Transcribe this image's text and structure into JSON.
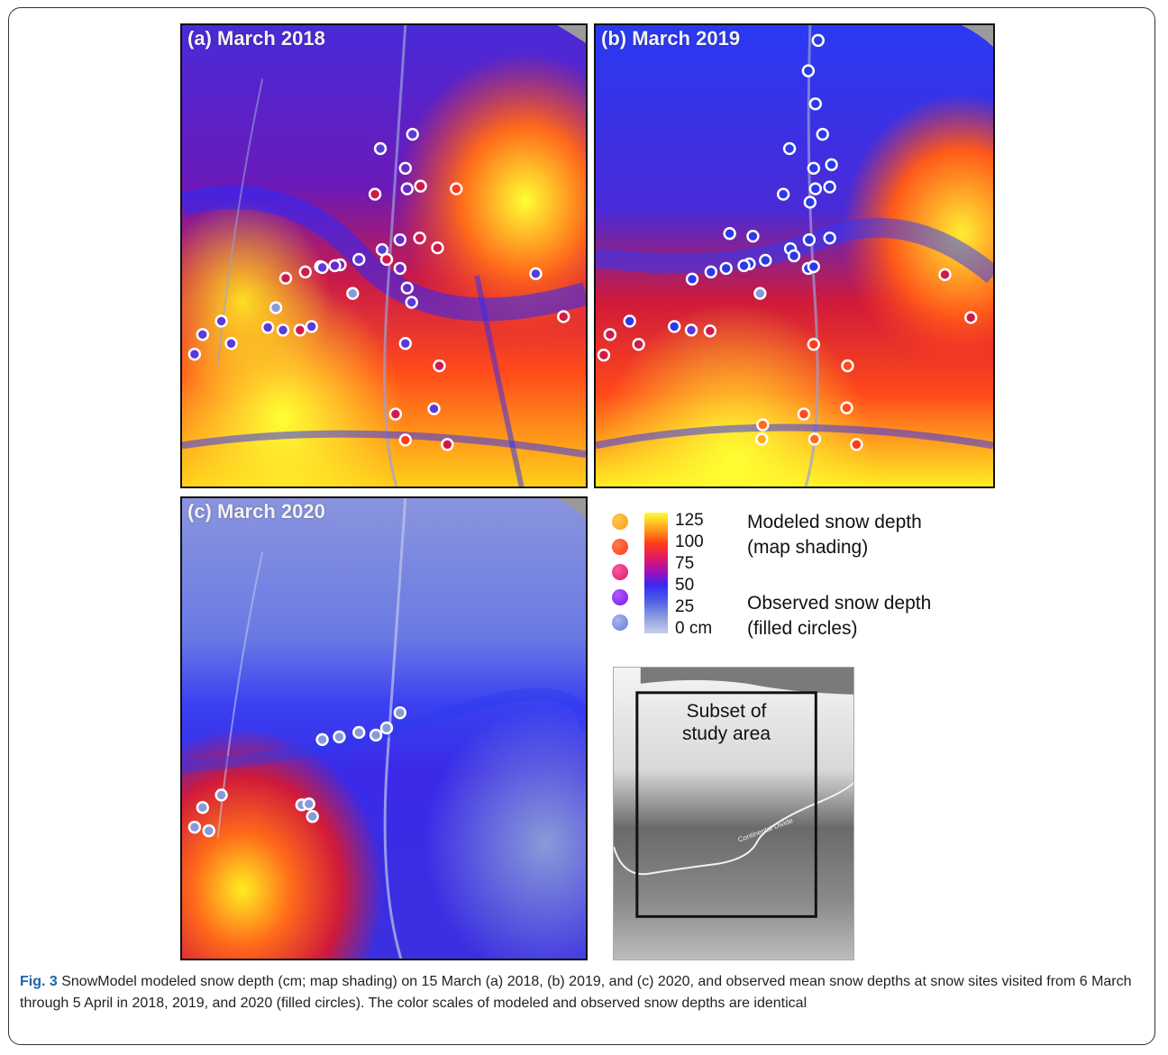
{
  "panels": {
    "a": {
      "label": "(a) March 2018"
    },
    "b": {
      "label": "(b) March 2019"
    },
    "c": {
      "label": "(c) March 2020"
    }
  },
  "legend": {
    "ticks": [
      "125",
      "100",
      "75",
      "50",
      "25",
      "0 cm"
    ],
    "modeled_title_1": "Modeled snow depth",
    "modeled_title_2": "(map shading)",
    "observed_title_1": "Observed snow depth",
    "observed_title_2": "(filled circles)",
    "dot_colors": [
      "#ff9a1a",
      "#ff4a1a",
      "#e01a7a",
      "#8a18e6",
      "#6c7ad8"
    ],
    "bar_colors": [
      "#ffff33",
      "#ff3a1a",
      "#9a10c0",
      "#3a28f2",
      "#c8cfea"
    ]
  },
  "inset": {
    "label_line1": "Subset of",
    "label_line2": "study area",
    "divide_label": "Continental Divide"
  },
  "caption": {
    "fig": "Fig. 3",
    "text": " SnowModel modeled snow depth (cm; map shading) on 15 March (a) 2018, (b) 2019, and (c) 2020, and observed mean snow depths at snow sites visited from 6 March through 5 April in 2018, 2019, and 2020 (filled circles). The color scales of modeled and observed snow depths are identical"
  }
}
